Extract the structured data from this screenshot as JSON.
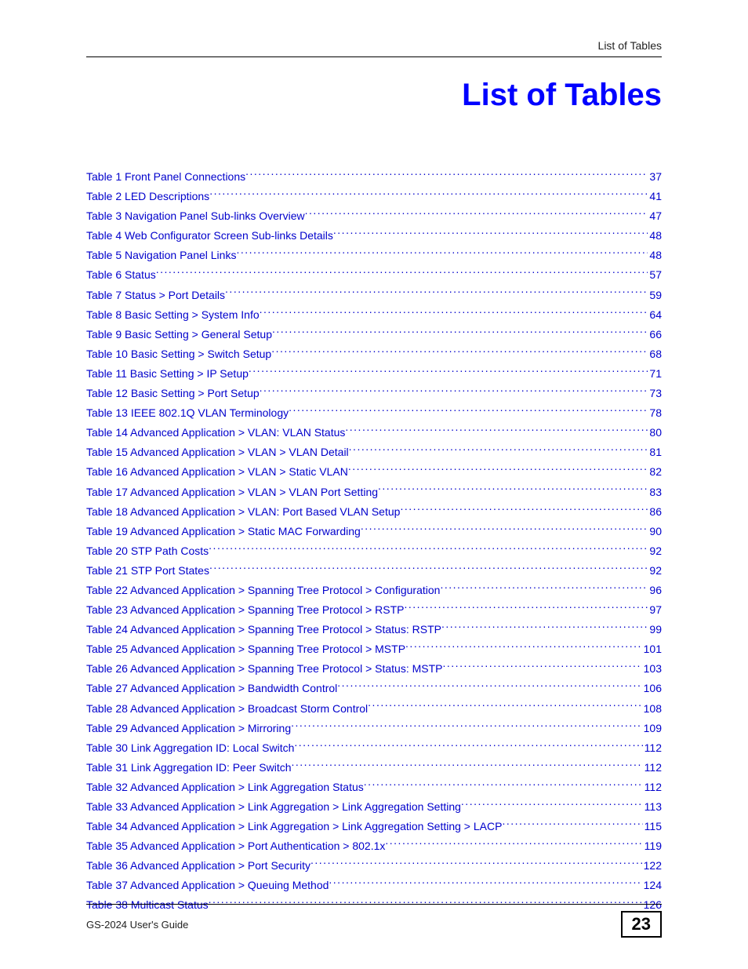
{
  "header": {
    "label": "List of Tables"
  },
  "title": "List of Tables",
  "colors": {
    "title_color": "#0000ff",
    "link_color": "#0000cc",
    "text_color": "#000000",
    "rule_color": "#000000",
    "background": "#ffffff"
  },
  "typography": {
    "title_fontsize": 40,
    "body_fontsize": 14,
    "footer_fontsize": 13,
    "pageno_fontsize": 22
  },
  "toc": [
    {
      "label": "Table 1 Front Panel Connections",
      "page": "37"
    },
    {
      "label": "Table 2 LED Descriptions",
      "page": "41"
    },
    {
      "label": "Table 3 Navigation Panel Sub-links Overview",
      "page": "47"
    },
    {
      "label": "Table 4 Web Configurator Screen Sub-links Details",
      "page": "48"
    },
    {
      "label": "Table 5 Navigation Panel Links",
      "page": "48"
    },
    {
      "label": "Table 6 Status",
      "page": "57"
    },
    {
      "label": "Table 7 Status > Port Details",
      "page": "59"
    },
    {
      "label": "Table 8 Basic Setting > System Info",
      "page": "64"
    },
    {
      "label": "Table 9 Basic Setting > General Setup",
      "page": "66"
    },
    {
      "label": "Table 10 Basic Setting > Switch Setup",
      "page": "68"
    },
    {
      "label": "Table 11 Basic Setting > IP Setup",
      "page": "71"
    },
    {
      "label": "Table 12 Basic Setting > Port Setup",
      "page": "73"
    },
    {
      "label": "Table 13 IEEE 802.1Q VLAN Terminology",
      "page": "78"
    },
    {
      "label": "Table 14 Advanced Application > VLAN: VLAN Status",
      "page": "80"
    },
    {
      "label": "Table 15 Advanced Application > VLAN > VLAN Detail",
      "page": "81"
    },
    {
      "label": "Table 16 Advanced Application > VLAN > Static VLAN",
      "page": "82"
    },
    {
      "label": "Table 17 Advanced Application > VLAN > VLAN Port Setting",
      "page": "83"
    },
    {
      "label": "Table 18 Advanced Application > VLAN: Port Based VLAN Setup",
      "page": "86"
    },
    {
      "label": "Table 19 Advanced Application > Static MAC Forwarding",
      "page": "90"
    },
    {
      "label": "Table 20 STP Path Costs",
      "page": "92"
    },
    {
      "label": "Table 21 STP Port States",
      "page": "92"
    },
    {
      "label": "Table 22 Advanced Application > Spanning Tree Protocol > Configuration",
      "page": "96"
    },
    {
      "label": "Table 23 Advanced Application > Spanning Tree Protocol > RSTP",
      "page": "97"
    },
    {
      "label": "Table 24 Advanced Application > Spanning Tree Protocol > Status: RSTP",
      "page": "99"
    },
    {
      "label": "Table 25 Advanced Application > Spanning Tree Protocol > MSTP",
      "page": "101"
    },
    {
      "label": "Table 26 Advanced Application > Spanning Tree Protocol > Status: MSTP",
      "page": "103"
    },
    {
      "label": "Table 27 Advanced Application > Bandwidth Control",
      "page": "106"
    },
    {
      "label": "Table 28 Advanced Application > Broadcast Storm Control",
      "page": "108"
    },
    {
      "label": "Table 29 Advanced Application > Mirroring",
      "page": "109"
    },
    {
      "label": "Table 30 Link Aggregation ID: Local Switch",
      "page": "112"
    },
    {
      "label": "Table 31 Link Aggregation ID: Peer Switch",
      "page": "112"
    },
    {
      "label": "Table 32 Advanced Application > Link Aggregation Status",
      "page": "112"
    },
    {
      "label": "Table 33 Advanced Application > Link Aggregation > Link Aggregation Setting",
      "page": "113"
    },
    {
      "label": "Table 34 Advanced Application > Link Aggregation > Link Aggregation Setting > LACP",
      "page": "115"
    },
    {
      "label": "Table 35 Advanced Application > Port Authentication > 802.1x",
      "page": "119"
    },
    {
      "label": "Table 36 Advanced Application > Port Security",
      "page": "122"
    },
    {
      "label": "Table 37 Advanced Application > Queuing Method",
      "page": "124"
    },
    {
      "label": "Table 38 Multicast Status",
      "page": "126"
    }
  ],
  "footer": {
    "left": "GS-2024 User's Guide",
    "page_number": "23"
  }
}
